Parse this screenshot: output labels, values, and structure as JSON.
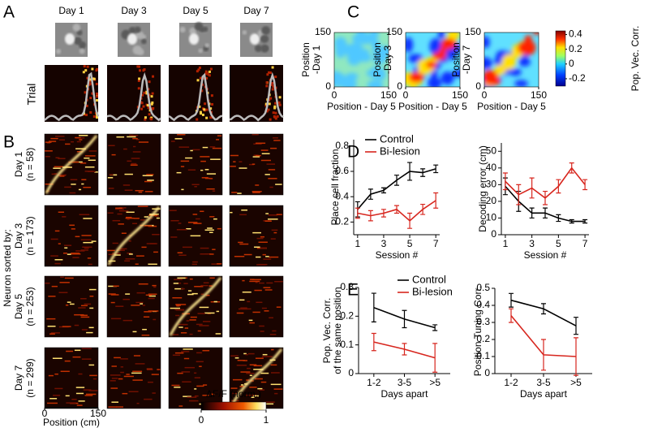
{
  "panel_labels": [
    "A",
    "B",
    "C",
    "D",
    "E"
  ],
  "panel_a": {
    "days": [
      "Day 1",
      "Day 3",
      "Day 5",
      "Day 7"
    ],
    "y_label": "Trial"
  },
  "panel_b": {
    "y_label": "Neuron sorted by:",
    "rows": [
      {
        "day": "Day 1",
        "n": "(n = 58)"
      },
      {
        "day": "Day 3",
        "n": "(n = 173)"
      },
      {
        "day": "Day 5",
        "n": "(n = 253)"
      },
      {
        "day": "Day 7",
        "n": "(n = 299)"
      }
    ],
    "x_label": "Position (cm)",
    "xticks": [
      0,
      150
    ],
    "colorbar": {
      "label": "ΔF/F (norm.)",
      "ticks": [
        0,
        1
      ]
    }
  },
  "panel_c": {
    "x_label": "Position - Day 5",
    "ticks": [
      0,
      150
    ],
    "y_labels": [
      [
        "Position",
        "-Day 1"
      ],
      [
        "Position",
        "-Day 3"
      ],
      [
        "Position",
        "-Day 7"
      ]
    ],
    "colorbar": {
      "label": "Pop. Vec. Corr.",
      "ticks": [
        0.4,
        0.2,
        0,
        -0.2
      ]
    }
  },
  "chart_data": [
    {
      "type": "line",
      "x_label": "Session #",
      "y_label": "Place cell fraction",
      "x": [
        1,
        2,
        3,
        4,
        5,
        6,
        7
      ],
      "xlim": [
        0.7,
        7.3
      ],
      "xticks": [
        1,
        3,
        5,
        7
      ],
      "ylim": [
        0.1,
        0.85
      ],
      "yticks": [
        0.2,
        0.4,
        0.6,
        0.8
      ],
      "series": [
        {
          "name": "Control",
          "color": "#000000",
          "values": [
            0.3,
            0.42,
            0.45,
            0.53,
            0.6,
            0.59,
            0.62
          ],
          "errors": [
            0.06,
            0.04,
            0.02,
            0.04,
            0.07,
            0.03,
            0.03
          ]
        },
        {
          "name": "Bi-lesion",
          "color": "#d7261e",
          "values": [
            0.27,
            0.25,
            0.27,
            0.3,
            0.21,
            0.3,
            0.37
          ],
          "errors": [
            0.04,
            0.04,
            0.03,
            0.03,
            0.06,
            0.04,
            0.06
          ]
        }
      ]
    },
    {
      "type": "line",
      "x_label": "Session #",
      "y_label": "Decoding error (cm)",
      "x": [
        1,
        2,
        3,
        4,
        5,
        6,
        7
      ],
      "xlim": [
        0.7,
        7.3
      ],
      "xticks": [
        1,
        3,
        5,
        7
      ],
      "ylim": [
        0,
        55
      ],
      "yticks": [
        0,
        10,
        20,
        30,
        40,
        50
      ],
      "series": [
        {
          "color": "#000000",
          "values": [
            29,
            20,
            13,
            13,
            10,
            8,
            8
          ],
          "errors": [
            5,
            6,
            3,
            3,
            2,
            1,
            1
          ]
        },
        {
          "color": "#d7261e",
          "values": [
            32,
            24,
            28,
            22,
            29,
            40,
            30
          ],
          "errors": [
            5,
            6,
            6,
            4,
            4,
            3,
            3
          ]
        }
      ]
    },
    {
      "type": "line",
      "x_label": "Days apart",
      "y_label": [
        "Pop. Vec. Corr.",
        "of the same position"
      ],
      "categories": [
        "1-2",
        "3-5",
        ">5"
      ],
      "ylim": [
        0,
        0.3
      ],
      "yticks": [
        0,
        0.1,
        0.2,
        0.3
      ],
      "series": [
        {
          "name": "Control",
          "color": "#000000",
          "values": [
            0.23,
            0.19,
            0.16
          ],
          "errors": [
            0.05,
            0.03,
            0.01
          ]
        },
        {
          "name": "Bi-lesion",
          "color": "#d7261e",
          "values": [
            0.11,
            0.085,
            0.055
          ],
          "errors": [
            0.03,
            0.02,
            0.05
          ]
        }
      ]
    },
    {
      "type": "line",
      "x_label": "Days apart",
      "y_label": "Position Tuning Corr.",
      "categories": [
        "1-2",
        "3-5",
        ">5"
      ],
      "ylim": [
        0,
        0.5
      ],
      "yticks": [
        0,
        0.1,
        0.2,
        0.3,
        0.4,
        0.5
      ],
      "series": [
        {
          "color": "#000000",
          "values": [
            0.43,
            0.38,
            0.28
          ],
          "errors": [
            0.04,
            0.03,
            0.05
          ]
        },
        {
          "color": "#d7261e",
          "values": [
            0.34,
            0.11,
            0.1
          ],
          "errors": [
            0.04,
            0.09,
            0.11
          ]
        }
      ]
    }
  ]
}
